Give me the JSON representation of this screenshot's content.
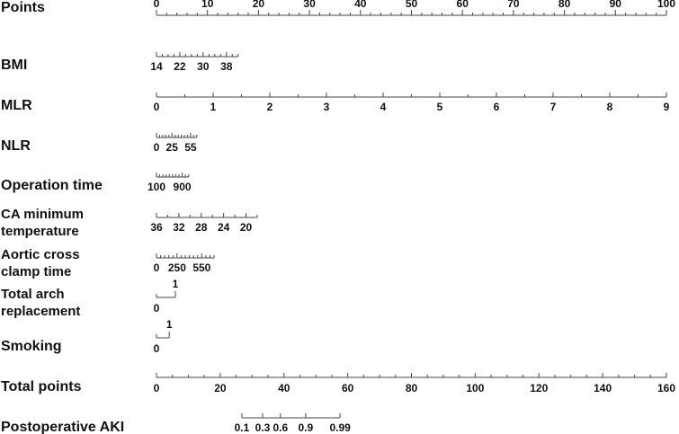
{
  "chart_data": {
    "type": "nomogram",
    "points_axis": {
      "name": "Points",
      "lim": [
        0,
        100
      ],
      "ticks": [
        0,
        10,
        20,
        30,
        40,
        50,
        60,
        70,
        80,
        90,
        100
      ],
      "minor_ticks": [
        2,
        4,
        6,
        8,
        12,
        14,
        16,
        18,
        22,
        24,
        26,
        28,
        32,
        34,
        36,
        38,
        42,
        44,
        46,
        48,
        52,
        54,
        56,
        58,
        62,
        64,
        66,
        68,
        72,
        74,
        76,
        78,
        82,
        84,
        86,
        88,
        92,
        94,
        96,
        98
      ]
    },
    "variables": [
      {
        "name": [
          "BMI"
        ],
        "lim": [
          14,
          42
        ],
        "points": [
          0,
          16.0
        ],
        "ticks": [
          14,
          22,
          30,
          38
        ],
        "minor_ticks": [
          16,
          18,
          20,
          24,
          26,
          28,
          32,
          34,
          36,
          40,
          42
        ]
      },
      {
        "name": [
          "MLR"
        ],
        "lim": [
          0,
          9
        ],
        "points": [
          0,
          100
        ],
        "ticks": [
          0,
          1,
          2,
          3,
          4,
          5,
          6,
          7,
          8,
          9
        ],
        "minor_ticks": [
          0.5,
          1.5,
          2.5,
          3.5,
          4.5,
          5.5,
          6.5,
          7.5,
          8.5
        ]
      },
      {
        "name": [
          "NLR"
        ],
        "lim": [
          0,
          65
        ],
        "points": [
          0,
          7.9
        ],
        "ticks": [
          0,
          25,
          55
        ],
        "minor_ticks": [
          5,
          10,
          15,
          20,
          30,
          35,
          40,
          45,
          50,
          60,
          65
        ]
      },
      {
        "name": [
          "Operation time"
        ],
        "lim": [
          100,
          1100
        ],
        "points": [
          0,
          6.3
        ],
        "ticks": [
          100,
          900
        ],
        "minor_ticks": [
          200,
          300,
          400,
          500,
          600,
          700,
          800,
          1000,
          1100
        ]
      },
      {
        "name": [
          "CA minimum",
          "temperature"
        ],
        "lim": [
          36,
          18
        ],
        "points": [
          0,
          19.75
        ],
        "ticks": [
          36,
          32,
          28,
          24,
          20
        ],
        "minor_ticks": [
          34,
          30,
          26,
          22,
          18
        ]
      },
      {
        "name": [
          "Aortic cross",
          "clamp time"
        ],
        "lim": [
          0,
          700
        ],
        "points": [
          0,
          11.3
        ],
        "ticks": [
          0,
          250,
          550
        ],
        "minor_ticks": [
          50,
          100,
          150,
          200,
          300,
          350,
          400,
          450,
          500,
          600,
          650,
          700
        ]
      },
      {
        "name": [
          "Total arch",
          "replacement"
        ],
        "categorical": true,
        "lim": [
          0,
          1
        ],
        "points": [
          0,
          3.7
        ],
        "ticks": [
          0,
          1
        ]
      },
      {
        "name": [
          "Smoking"
        ],
        "categorical": true,
        "lim": [
          0,
          1
        ],
        "points": [
          0,
          2.5
        ],
        "ticks": [
          0,
          1
        ]
      }
    ],
    "total_axis": {
      "name": "Total points",
      "lim": [
        0,
        160
      ],
      "ticks": [
        0,
        20,
        40,
        60,
        80,
        100,
        120,
        140,
        160
      ],
      "minor_ticks": [
        5,
        10,
        15,
        25,
        30,
        35,
        45,
        50,
        55,
        65,
        70,
        75,
        85,
        90,
        95,
        105,
        110,
        115,
        125,
        130,
        135,
        145,
        150,
        155
      ]
    },
    "outcome": {
      "name": "Postoperative AKI",
      "ticks": [
        {
          "value": 0.1,
          "total": 26.8
        },
        {
          "value": 0.3,
          "total": 33.3
        },
        {
          "value": 0.6,
          "total": 38.9
        },
        {
          "value": 0.9,
          "total": 46.8
        },
        {
          "value": 0.99,
          "total": 57.6
        }
      ]
    }
  }
}
